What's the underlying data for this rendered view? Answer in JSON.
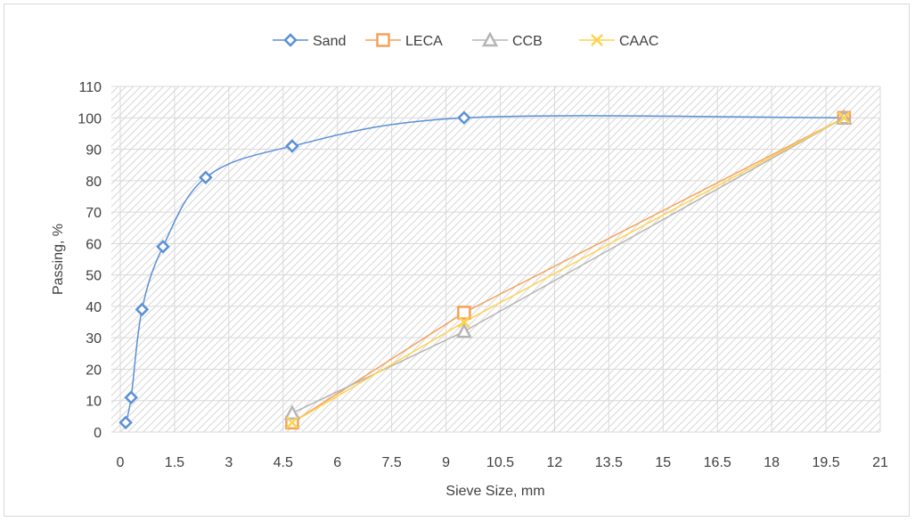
{
  "chart_data": {
    "type": "scatter",
    "xlabel": "Sieve Size, mm",
    "ylabel": "Passing, %",
    "xlim": [
      0,
      21
    ],
    "ylim": [
      0,
      110
    ],
    "xticks": [
      0,
      1.5,
      3,
      4.5,
      6,
      7.5,
      9,
      10.5,
      12,
      13.5,
      15,
      16.5,
      18,
      19.5,
      21
    ],
    "xtick_labels": [
      "0",
      "1.5",
      "3",
      "4.5",
      "6",
      "7.5",
      "9",
      "10.5",
      "12",
      "13.5",
      "15",
      "16.5",
      "18",
      "19.5",
      "21"
    ],
    "yticks": [
      0,
      10,
      20,
      30,
      40,
      50,
      60,
      70,
      80,
      90,
      100,
      110
    ],
    "ytick_labels": [
      "0",
      "10",
      "20",
      "30",
      "40",
      "50",
      "60",
      "70",
      "80",
      "90",
      "100",
      "110"
    ],
    "grid": true,
    "legend_position": "top",
    "series": [
      {
        "name": "Sand",
        "color": "#5b8fd6",
        "marker": "diamond",
        "smooth": true,
        "points": [
          [
            0.15,
            3
          ],
          [
            0.3,
            11
          ],
          [
            0.6,
            39
          ],
          [
            1.18,
            59
          ],
          [
            2.36,
            81
          ],
          [
            4.75,
            91
          ],
          [
            9.5,
            100
          ],
          [
            20,
            100
          ]
        ]
      },
      {
        "name": "LECA",
        "color": "#f5a15a",
        "marker": "square",
        "smooth": false,
        "points": [
          [
            4.75,
            3
          ],
          [
            9.5,
            38
          ],
          [
            20,
            100
          ]
        ]
      },
      {
        "name": "CCB",
        "color": "#b5b5b5",
        "marker": "triangle",
        "smooth": false,
        "points": [
          [
            4.75,
            6
          ],
          [
            9.5,
            32
          ],
          [
            20,
            100
          ]
        ]
      },
      {
        "name": "CAAC",
        "color": "#ffd24d",
        "marker": "x",
        "smooth": false,
        "points": [
          [
            4.75,
            3
          ],
          [
            9.5,
            35
          ],
          [
            20,
            100
          ]
        ]
      }
    ]
  }
}
